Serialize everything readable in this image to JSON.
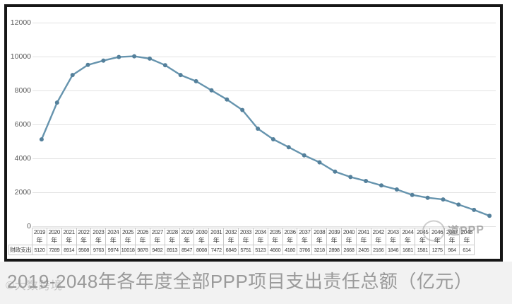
{
  "chart_data": {
    "type": "line",
    "title": "2019-2048年各年度全部PPP项目支出责任总额（亿元）",
    "xlabel": "",
    "ylabel": "",
    "ylim": [
      0,
      12000
    ],
    "yticks": [
      0,
      2000,
      4000,
      6000,
      8000,
      10000,
      12000
    ],
    "grid": true,
    "legend_position": "data-table-below-axis",
    "year_suffix": "年",
    "categories": [
      "2019",
      "2020",
      "2021",
      "2022",
      "2023",
      "2024",
      "2025",
      "2026",
      "2027",
      "2028",
      "2029",
      "2030",
      "2031",
      "2032",
      "2033",
      "2034",
      "2035",
      "2036",
      "2037",
      "2038",
      "2039",
      "2040",
      "2041",
      "2042",
      "2043",
      "2044",
      "2045",
      "2046",
      "2047",
      "2048"
    ],
    "series": [
      {
        "name": "财政支出",
        "values": [
          5120,
          7289,
          8914,
          9508,
          9763,
          9974,
          10018,
          9878,
          9492,
          8913,
          8547,
          8008,
          7472,
          6849,
          5751,
          5123,
          4660,
          4180,
          3766,
          3218,
          2898,
          2668,
          2405,
          2166,
          1846,
          1681,
          1581,
          1275,
          964,
          614
        ]
      }
    ],
    "line_color": "#6694ae",
    "marker_color": "#54809b",
    "grid_color": "#e2e2e2"
  },
  "watermarks": {
    "stamp_text": "道PPP",
    "source_text": "©大数跨境"
  }
}
